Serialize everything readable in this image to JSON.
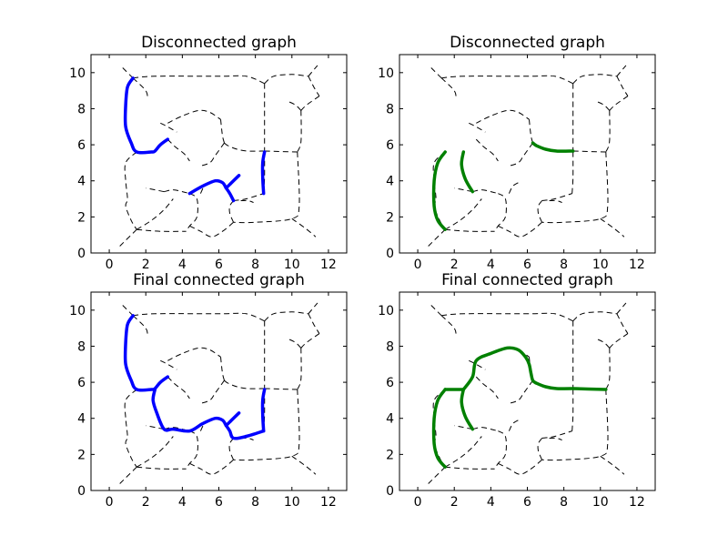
{
  "chart_data": [
    {
      "type": "line",
      "title": "Disconnected graph",
      "xlim": [
        -1,
        13
      ],
      "ylim": [
        0,
        11
      ],
      "xticks": [
        0,
        2,
        4,
        6,
        8,
        10,
        12
      ],
      "yticks": [
        0,
        2,
        4,
        6,
        8,
        10
      ],
      "background_graph_style": "black dashed",
      "highlight_color": "#0000ff",
      "highlighted_paths": [
        [
          [
            1.3,
            9.7
          ],
          [
            1.0,
            9.2
          ],
          [
            0.9,
            8.2
          ],
          [
            0.9,
            7.0
          ],
          [
            1.2,
            6.1
          ],
          [
            1.5,
            5.6
          ],
          [
            2.3,
            5.6
          ],
          [
            2.5,
            5.65
          ],
          [
            2.8,
            6.0
          ],
          [
            3.2,
            6.3
          ]
        ],
        [
          [
            4.4,
            3.3
          ],
          [
            5.1,
            3.7
          ],
          [
            5.8,
            4.0
          ],
          [
            6.2,
            3.9
          ],
          [
            6.4,
            3.6
          ],
          [
            6.6,
            3.3
          ],
          [
            6.8,
            2.9
          ]
        ],
        [
          [
            6.4,
            3.6
          ],
          [
            6.6,
            3.8
          ],
          [
            7.1,
            4.3
          ]
        ],
        [
          [
            8.5,
            5.6
          ],
          [
            8.4,
            5.0
          ],
          [
            8.4,
            4.2
          ],
          [
            8.45,
            3.3
          ]
        ]
      ]
    },
    {
      "type": "line",
      "title": "Disconnected graph",
      "xlim": [
        -1,
        13
      ],
      "ylim": [
        0,
        11
      ],
      "xticks": [
        0,
        2,
        4,
        6,
        8,
        10,
        12
      ],
      "yticks": [
        0,
        2,
        4,
        6,
        8,
        10
      ],
      "background_graph_style": "black dashed",
      "highlight_color": "#008000",
      "highlighted_paths": [
        [
          [
            1.5,
            5.6
          ],
          [
            1.1,
            5.0
          ],
          [
            0.9,
            4.0
          ],
          [
            0.9,
            2.6
          ],
          [
            1.1,
            1.8
          ],
          [
            1.5,
            1.3
          ]
        ],
        [
          [
            2.5,
            5.6
          ],
          [
            2.4,
            4.9
          ],
          [
            2.6,
            4.1
          ],
          [
            3.0,
            3.4
          ]
        ],
        [
          [
            6.3,
            6.1
          ],
          [
            6.5,
            5.95
          ],
          [
            7.0,
            5.75
          ],
          [
            7.6,
            5.65
          ],
          [
            8.5,
            5.65
          ]
        ]
      ]
    },
    {
      "type": "line",
      "title": "Final connected graph",
      "xlim": [
        -1,
        13
      ],
      "ylim": [
        0,
        11
      ],
      "xticks": [
        0,
        2,
        4,
        6,
        8,
        10,
        12
      ],
      "yticks": [
        0,
        2,
        4,
        6,
        8,
        10
      ],
      "background_graph_style": "black dashed",
      "highlight_color": "#0000ff",
      "highlighted_paths": [
        [
          [
            1.3,
            9.7
          ],
          [
            1.0,
            9.2
          ],
          [
            0.9,
            8.2
          ],
          [
            0.9,
            7.0
          ],
          [
            1.2,
            6.1
          ],
          [
            1.5,
            5.6
          ],
          [
            2.3,
            5.6
          ],
          [
            2.5,
            5.65
          ],
          [
            2.8,
            6.0
          ],
          [
            3.2,
            6.3
          ]
        ],
        [
          [
            2.5,
            5.6
          ],
          [
            2.4,
            5.0
          ],
          [
            2.6,
            4.3
          ],
          [
            3.0,
            3.4
          ],
          [
            3.5,
            3.4
          ],
          [
            4.4,
            3.3
          ],
          [
            5.1,
            3.7
          ],
          [
            5.8,
            4.0
          ],
          [
            6.2,
            3.9
          ],
          [
            6.4,
            3.6
          ],
          [
            6.6,
            3.3
          ],
          [
            6.8,
            2.9
          ],
          [
            7.5,
            3.0
          ],
          [
            8.45,
            3.3
          ]
        ],
        [
          [
            6.4,
            3.6
          ],
          [
            6.6,
            3.8
          ],
          [
            7.1,
            4.3
          ]
        ],
        [
          [
            8.5,
            5.6
          ],
          [
            8.4,
            5.0
          ],
          [
            8.4,
            4.2
          ],
          [
            8.45,
            3.3
          ]
        ]
      ]
    },
    {
      "type": "line",
      "title": "Final connected graph",
      "xlim": [
        -1,
        13
      ],
      "ylim": [
        0,
        11
      ],
      "xticks": [
        0,
        2,
        4,
        6,
        8,
        10,
        12
      ],
      "yticks": [
        0,
        2,
        4,
        6,
        8,
        10
      ],
      "background_graph_style": "black dashed",
      "highlight_color": "#008000",
      "highlighted_paths": [
        [
          [
            1.5,
            5.6
          ],
          [
            1.1,
            5.0
          ],
          [
            0.9,
            4.0
          ],
          [
            0.9,
            2.6
          ],
          [
            1.1,
            1.8
          ],
          [
            1.5,
            1.3
          ]
        ],
        [
          [
            1.5,
            5.6
          ],
          [
            2.5,
            5.6
          ]
        ],
        [
          [
            2.5,
            5.6
          ],
          [
            2.4,
            4.9
          ],
          [
            2.6,
            4.1
          ],
          [
            3.0,
            3.4
          ]
        ],
        [
          [
            2.5,
            5.6
          ],
          [
            3.0,
            6.3
          ],
          [
            3.2,
            7.2
          ],
          [
            4.0,
            7.6
          ],
          [
            4.9,
            7.9
          ],
          [
            5.5,
            7.8
          ],
          [
            5.9,
            7.4
          ],
          [
            6.1,
            7.0
          ],
          [
            6.2,
            6.5
          ],
          [
            6.3,
            6.1
          ],
          [
            6.5,
            5.95
          ],
          [
            7.0,
            5.75
          ],
          [
            7.6,
            5.65
          ],
          [
            8.5,
            5.65
          ],
          [
            10.3,
            5.6
          ]
        ]
      ]
    }
  ],
  "background_graph": {
    "polylines": [
      [
        [
          1.3,
          9.7
        ],
        [
          2.5,
          9.8
        ],
        [
          6.0,
          9.8
        ],
        [
          7.5,
          9.8
        ],
        [
          8.5,
          9.4
        ]
      ],
      [
        [
          8.5,
          9.4
        ],
        [
          8.5,
          5.65
        ]
      ],
      [
        [
          8.5,
          9.4
        ],
        [
          9.0,
          9.8
        ],
        [
          10.0,
          9.9
        ],
        [
          10.9,
          9.8
        ]
      ],
      [
        [
          10.9,
          9.8
        ],
        [
          11.4,
          10.4
        ]
      ],
      [
        [
          10.9,
          9.8
        ],
        [
          11.2,
          9.2
        ],
        [
          11.5,
          8.7
        ]
      ],
      [
        [
          11.5,
          8.7
        ],
        [
          10.8,
          8.2
        ],
        [
          10.5,
          7.9
        ]
      ],
      [
        [
          10.5,
          7.9
        ],
        [
          10.2,
          8.2
        ],
        [
          9.8,
          8.4
        ]
      ],
      [
        [
          10.5,
          7.9
        ],
        [
          10.5,
          6.2
        ],
        [
          10.3,
          5.6
        ]
      ],
      [
        [
          10.3,
          5.6
        ],
        [
          8.5,
          5.65
        ]
      ],
      [
        [
          10.3,
          5.6
        ],
        [
          10.4,
          2.6
        ],
        [
          10.0,
          1.9
        ],
        [
          8.0,
          1.7
        ],
        [
          6.8,
          1.7
        ]
      ],
      [
        [
          10.0,
          1.9
        ],
        [
          10.7,
          1.4
        ],
        [
          11.3,
          0.9
        ]
      ],
      [
        [
          1.3,
          9.7
        ],
        [
          0.6,
          10.4
        ]
      ],
      [
        [
          1.3,
          9.7
        ],
        [
          2.0,
          9.0
        ],
        [
          2.1,
          8.5
        ]
      ],
      [
        [
          2.8,
          7.2
        ],
        [
          3.2,
          7.0
        ],
        [
          3.7,
          6.7
        ]
      ],
      [
        [
          3.2,
          7.2
        ],
        [
          4.0,
          7.6
        ],
        [
          4.9,
          7.9
        ],
        [
          5.5,
          7.8
        ],
        [
          6.1,
          7.4
        ]
      ],
      [
        [
          6.1,
          7.4
        ],
        [
          6.2,
          6.5
        ],
        [
          6.3,
          6.1
        ]
      ],
      [
        [
          6.3,
          6.1
        ],
        [
          6.5,
          5.95
        ],
        [
          7.0,
          5.75
        ],
        [
          7.6,
          5.65
        ],
        [
          8.5,
          5.65
        ]
      ],
      [
        [
          6.3,
          6.1
        ],
        [
          5.8,
          5.4
        ],
        [
          5.5,
          5.0
        ],
        [
          4.9,
          4.8
        ]
      ],
      [
        [
          3.2,
          6.3
        ],
        [
          3.6,
          5.9
        ],
        [
          4.1,
          5.5
        ],
        [
          4.4,
          5.1
        ]
      ],
      [
        [
          1.5,
          5.6
        ],
        [
          0.9,
          5.0
        ],
        [
          0.9,
          4.0
        ],
        [
          1.0,
          3.0
        ],
        [
          0.9,
          2.6
        ],
        [
          1.2,
          1.8
        ],
        [
          1.5,
          1.3
        ]
      ],
      [
        [
          1.5,
          1.3
        ],
        [
          2.8,
          1.2
        ],
        [
          4.2,
          1.2
        ]
      ],
      [
        [
          1.5,
          1.3
        ],
        [
          0.9,
          0.7
        ],
        [
          0.5,
          0.3
        ]
      ],
      [
        [
          1.5,
          1.3
        ],
        [
          2.3,
          1.8
        ],
        [
          3.0,
          2.4
        ],
        [
          3.5,
          3.0
        ]
      ],
      [
        [
          3.0,
          3.4
        ],
        [
          3.5,
          3.5
        ],
        [
          4.0,
          3.4
        ],
        [
          4.4,
          3.3
        ]
      ],
      [
        [
          3.0,
          3.4
        ],
        [
          2.5,
          3.5
        ],
        [
          2.0,
          3.6
        ]
      ],
      [
        [
          4.4,
          3.3
        ],
        [
          4.8,
          3.0
        ],
        [
          4.8,
          2.0
        ],
        [
          4.4,
          1.5
        ],
        [
          4.2,
          1.2
        ]
      ],
      [
        [
          4.4,
          1.5
        ],
        [
          5.0,
          1.2
        ],
        [
          5.6,
          0.9
        ],
        [
          6.2,
          1.2
        ],
        [
          6.8,
          1.7
        ]
      ],
      [
        [
          6.8,
          1.7
        ],
        [
          6.6,
          2.2
        ],
        [
          6.6,
          2.6
        ],
        [
          6.8,
          2.9
        ]
      ],
      [
        [
          6.8,
          2.9
        ],
        [
          7.5,
          3.0
        ],
        [
          8.45,
          3.3
        ]
      ],
      [
        [
          8.45,
          3.3
        ],
        [
          8.5,
          4.2
        ],
        [
          8.5,
          5.6
        ]
      ],
      [
        [
          5.0,
          3.3
        ],
        [
          5.2,
          3.7
        ],
        [
          5.5,
          3.9
        ]
      ],
      [
        [
          7.2,
          2.9
        ],
        [
          7.6,
          2.9
        ],
        [
          7.9,
          2.8
        ]
      ]
    ]
  }
}
